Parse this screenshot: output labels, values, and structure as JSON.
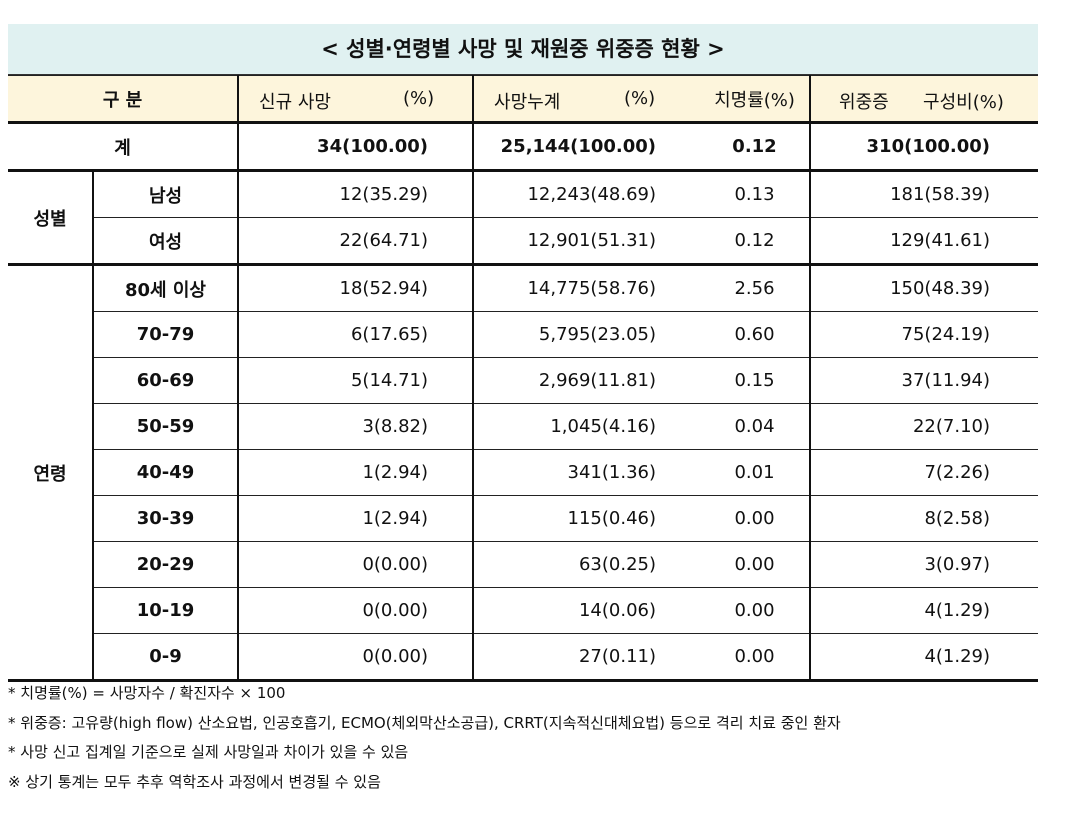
{
  "title": "< 성별·연령별 사망 및 재원중 위중증 현황 >",
  "header": {
    "category": "구 분",
    "new_death": "신규 사망",
    "new_death_unit": "(%)",
    "cum_death": "사망누계",
    "cum_death_unit": "(%)",
    "fatality": "치명률(%)",
    "severe": "위중증",
    "severe_unit": "구성비(%)"
  },
  "total": {
    "label": "계",
    "values": [
      "34(100.00)",
      "25,144(100.00)",
      "0.12",
      "310(100.00)"
    ]
  },
  "groups": [
    {
      "label": "성별",
      "rows": [
        {
          "label": "남성",
          "values": [
            "12(35.29)",
            "12,243(48.69)",
            "0.13",
            "181(58.39)"
          ]
        },
        {
          "label": "여성",
          "values": [
            "22(64.71)",
            "12,901(51.31)",
            "0.12",
            "129(41.61)"
          ]
        }
      ]
    },
    {
      "label": "연령",
      "rows": [
        {
          "label": "80세 이상",
          "values": [
            "18(52.94)",
            "14,775(58.76)",
            "2.56",
            "150(48.39)"
          ]
        },
        {
          "label": "70-79",
          "values": [
            "6(17.65)",
            "5,795(23.05)",
            "0.60",
            "75(24.19)"
          ]
        },
        {
          "label": "60-69",
          "values": [
            "5(14.71)",
            "2,969(11.81)",
            "0.15",
            "37(11.94)"
          ]
        },
        {
          "label": "50-59",
          "values": [
            "3(8.82)",
            "1,045(4.16)",
            "0.04",
            "22(7.10)"
          ]
        },
        {
          "label": "40-49",
          "values": [
            "1(2.94)",
            "341(1.36)",
            "0.01",
            "7(2.26)"
          ]
        },
        {
          "label": "30-39",
          "values": [
            "1(2.94)",
            "115(0.46)",
            "0.00",
            "8(2.58)"
          ]
        },
        {
          "label": "20-29",
          "values": [
            "0(0.00)",
            "63(0.25)",
            "0.00",
            "3(0.97)"
          ]
        },
        {
          "label": "10-19",
          "values": [
            "0(0.00)",
            "14(0.06)",
            "0.00",
            "4(1.29)"
          ]
        },
        {
          "label": "0-9",
          "values": [
            "0(0.00)",
            "27(0.11)",
            "0.00",
            "4(1.29)"
          ]
        }
      ]
    }
  ],
  "notes": [
    "* 치명률(%) = 사망자수 / 확진자수 × 100",
    "* 위중증: 고유량(high flow) 산소요법, 인공호흡기, ECMO(체외막산소공급), CRRT(지속적신대체요법) 등으로 격리 치료 중인 환자",
    "* 사망 신고 집계일 기준으로 실제 사망일과 차이가 있을 수 있음",
    "※ 상기 통계는 모두 추후 역학조사 과정에서 변경될 수 있음"
  ]
}
